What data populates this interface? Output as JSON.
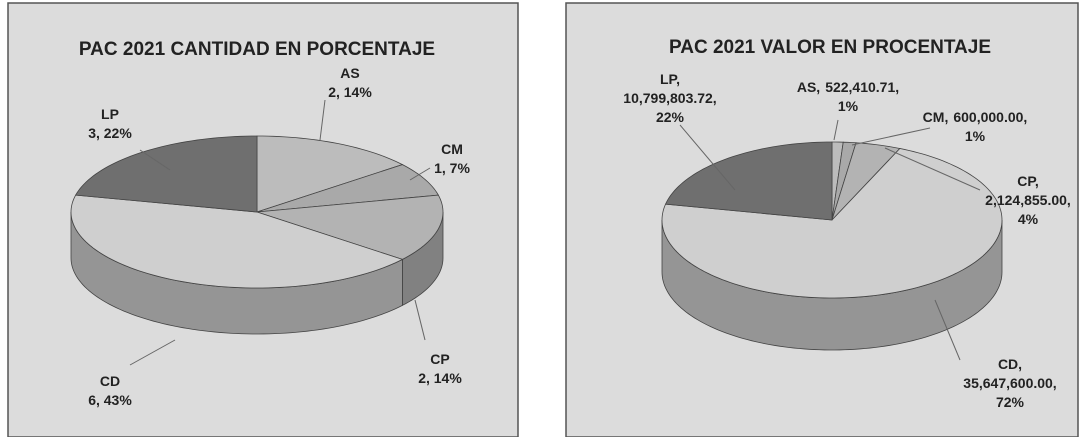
{
  "chart_data": [
    {
      "type": "pie3d",
      "title": "PAC 2021 CANTIDAD EN PORCENTAJE",
      "categories": [
        "AS",
        "CM",
        "CP",
        "CD",
        "LP"
      ],
      "values": [
        2,
        1,
        2,
        6,
        3
      ],
      "value_labels": [
        "2, 14%",
        "1, 7%",
        "2, 14%",
        "6, 43%",
        "3, 22%"
      ],
      "colors": [
        "#bcbcbc",
        "#a9a9a9",
        "#b3b3b3",
        "#cfcfcf",
        "#6f6f6f"
      ]
    },
    {
      "type": "pie3d",
      "title": "PAC 2021 VALOR EN PROCENTAJE",
      "categories": [
        "AS,",
        "CM,",
        "CP,",
        "CD,",
        "LP,"
      ],
      "values": [
        522410.71,
        600000.0,
        2124855.0,
        35647600.0,
        10799803.72
      ],
      "value_labels": [
        [
          "522,410.71,",
          "1%"
        ],
        [
          "600,000.00,",
          "1%"
        ],
        [
          "2,124,855.00,",
          "4%"
        ],
        [
          "35,647,600.00,",
          "72%"
        ],
        [
          "10,799,803.72,",
          "22%"
        ]
      ],
      "colors": [
        "#bcbcbc",
        "#a9a9a9",
        "#b3b3b3",
        "#cfcfcf",
        "#6f6f6f"
      ]
    }
  ]
}
